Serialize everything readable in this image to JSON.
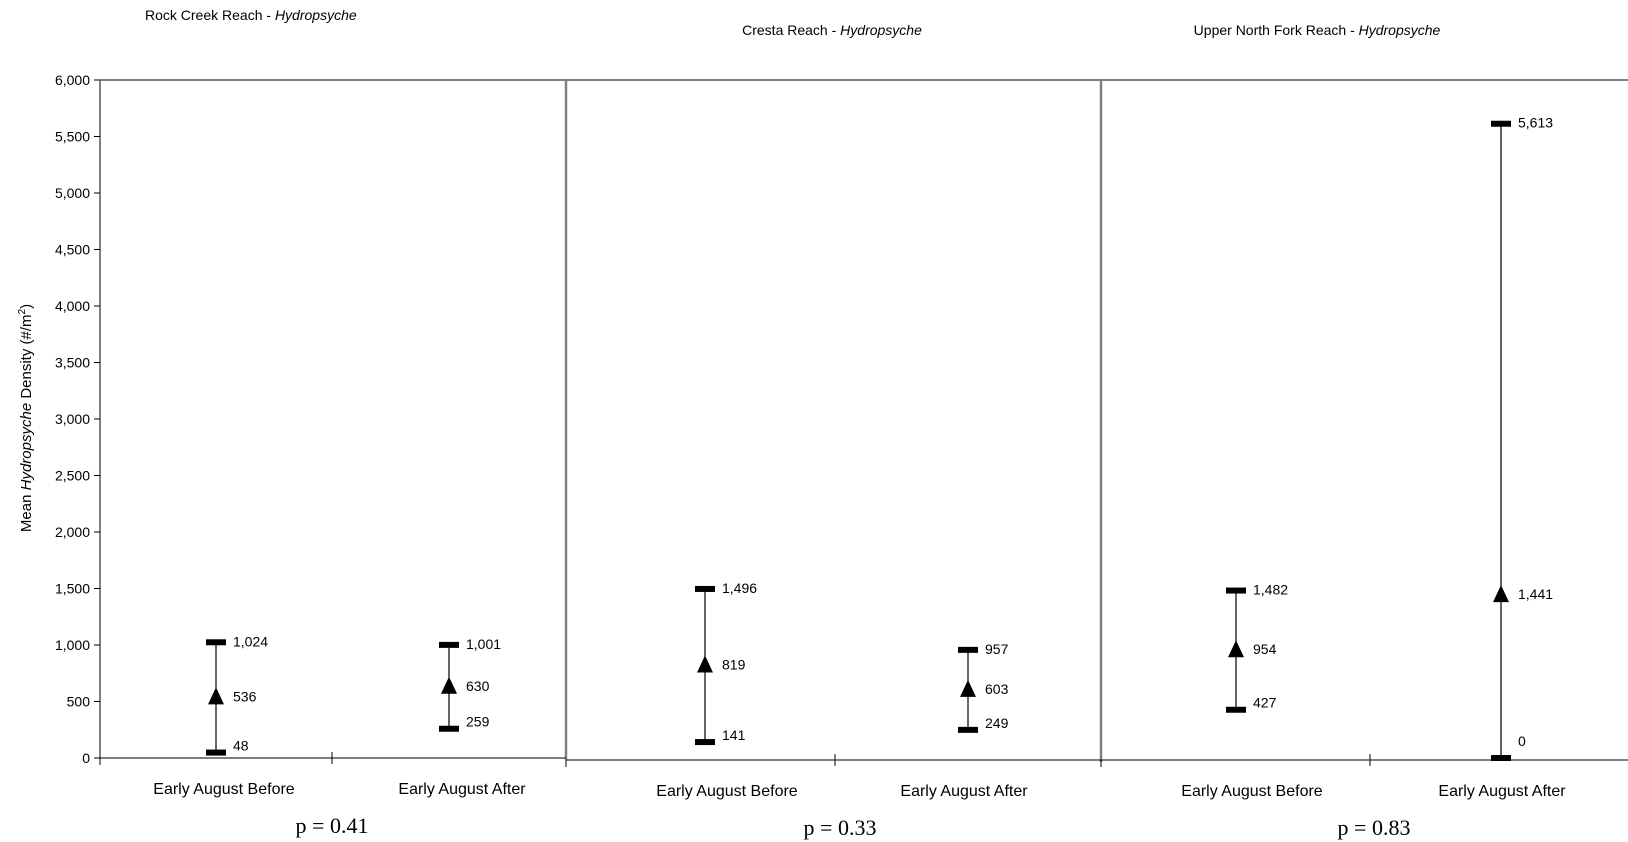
{
  "chart_data": {
    "type": "range",
    "ylabel": "Mean Hydropsyche Density (#/m²)",
    "ylabel_parts": {
      "prefix": "Mean ",
      "taxon": "Hydropsyche",
      "suffix": " Density (#/m",
      "sup": "2",
      "end": ")"
    },
    "ylim": [
      0,
      6000
    ],
    "yticks": [
      0,
      500,
      1000,
      1500,
      2000,
      2500,
      3000,
      3500,
      4000,
      4500,
      5000,
      5500,
      6000
    ],
    "ytick_labels": [
      "0",
      "500",
      "1,000",
      "1,500",
      "2,000",
      "2,500",
      "3,000",
      "3,500",
      "4,000",
      "4,500",
      "5,000",
      "5,500",
      "6,000"
    ],
    "grid": false,
    "panels": [
      {
        "title_prefix": "Rock Creek Reach - ",
        "title_taxon": "Hydropsyche",
        "p_label": "p = 0.41",
        "categories": [
          "Early August Before",
          "Early August After"
        ],
        "points": [
          {
            "mean": 536,
            "upper": 1024,
            "lower": 48,
            "mean_label": "536",
            "upper_label": "1,024",
            "lower_label": "48"
          },
          {
            "mean": 630,
            "upper": 1001,
            "lower": 259,
            "mean_label": "630",
            "upper_label": "1,001",
            "lower_label": "259"
          }
        ]
      },
      {
        "title_prefix": "Cresta Reach - ",
        "title_taxon": "Hydropsyche",
        "p_label": "p = 0.33",
        "categories": [
          "Early August Before",
          "Early August After"
        ],
        "points": [
          {
            "mean": 819,
            "upper": 1496,
            "lower": 141,
            "mean_label": "819",
            "upper_label": "1,496",
            "lower_label": "141"
          },
          {
            "mean": 603,
            "upper": 957,
            "lower": 249,
            "mean_label": "603",
            "upper_label": "957",
            "lower_label": "249"
          }
        ]
      },
      {
        "title_prefix": "Upper North Fork Reach - ",
        "title_taxon": "Hydropsyche",
        "p_label": "p = 0.83",
        "categories": [
          "Early August Before",
          "Early August After"
        ],
        "points": [
          {
            "mean": 954,
            "upper": 1482,
            "lower": 427,
            "mean_label": "954",
            "upper_label": "1,482",
            "lower_label": "427"
          },
          {
            "mean": 1441,
            "upper": 5613,
            "lower": 0,
            "mean_label": "1,441",
            "upper_label": "5,613",
            "lower_label": "0"
          }
        ]
      }
    ],
    "colors": {
      "marks": "#000000",
      "frame": "#808080"
    }
  }
}
